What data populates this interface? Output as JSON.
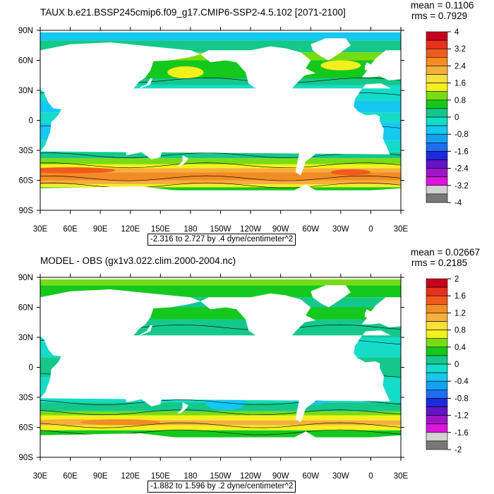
{
  "panels": [
    {
      "title": "TAUX b.e21.BSSP245cmip6.f09_g17.CMIP6-SSP2-4.5.102 [2071-2100]",
      "mean": "mean = 0.1106",
      "rms": "rms = 0.7929",
      "range": "-2.316 to 2.727 by .4 dyne/centimeter^2"
    },
    {
      "title": "MODEL - OBS (gx1v3.022.clim.2000-2004.nc)",
      "mean": "mean = 0.02667",
      "rms": "rms = 0.2185",
      "range": "-1.882 to 1.596 by .2 dyne/centimeter^2"
    }
  ],
  "chart_data": [
    {
      "type": "heatmap",
      "title": "TAUX b.e21.BSSP245cmip6.f09_g17.CMIP6-SSP2-4.5.102 [2071-2100]",
      "x_ticks": [
        "30E",
        "60E",
        "90E",
        "120E",
        "150E",
        "180",
        "150W",
        "120W",
        "90W",
        "60W",
        "30W",
        "0",
        "30E"
      ],
      "y_ticks": [
        "90N",
        "60N",
        "30N",
        "0",
        "30S",
        "60S",
        "90S"
      ],
      "colorbar_labels": [
        "4",
        "3.2",
        "2.4",
        "1.6",
        "0.8",
        "0",
        "-0.8",
        "-1.6",
        "-2.4",
        "-3.2",
        "-4"
      ],
      "colorbar_colors": [
        "#c8001e",
        "#e8301e",
        "#f05a1e",
        "#f38c24",
        "#f6ae3c",
        "#fbe03c",
        "#f4f01e",
        "#78dc14",
        "#14c81e",
        "#14c88c",
        "#14dcc8",
        "#14c8f0",
        "#14a0f0",
        "#1e6ef0",
        "#1e28dc",
        "#6414c8",
        "#a014c8",
        "#dc14dc",
        "#d2d2d2",
        "#787878"
      ],
      "xlim": [
        30,
        390
      ],
      "ylim": [
        -90,
        90
      ]
    },
    {
      "type": "heatmap",
      "title": "MODEL - OBS (gx1v3.022.clim.2000-2004.nc)",
      "x_ticks": [
        "30E",
        "60E",
        "90E",
        "120E",
        "150E",
        "180",
        "150W",
        "120W",
        "90W",
        "60W",
        "30W",
        "0",
        "30E"
      ],
      "y_ticks": [
        "90N",
        "60N",
        "30N",
        "0",
        "30S",
        "60S",
        "90S"
      ],
      "colorbar_labels": [
        "2",
        "1.6",
        "1.2",
        "0.8",
        "0.4",
        "0",
        "-0.4",
        "-0.8",
        "-1.2",
        "-1.6",
        "-2"
      ],
      "colorbar_colors": [
        "#c8001e",
        "#e8301e",
        "#f05a1e",
        "#f38c24",
        "#f6ae3c",
        "#fbe03c",
        "#f4f01e",
        "#78dc14",
        "#14c81e",
        "#14c88c",
        "#14dcc8",
        "#14c8f0",
        "#14a0f0",
        "#1e6ef0",
        "#1e28dc",
        "#6414c8",
        "#a014c8",
        "#dc14dc",
        "#d2d2d2",
        "#787878"
      ],
      "xlim": [
        30,
        390
      ],
      "ylim": [
        -90,
        90
      ]
    }
  ]
}
